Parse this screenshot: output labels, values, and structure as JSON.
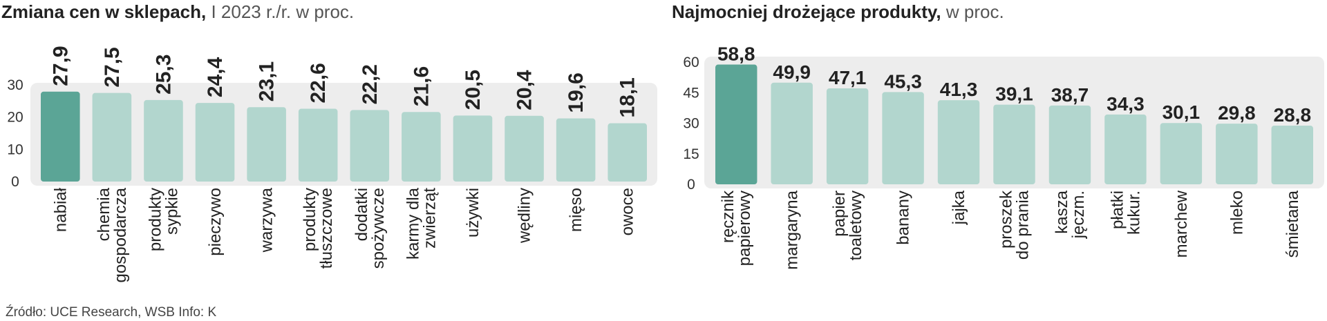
{
  "chart_data": [
    {
      "type": "bar",
      "title": "Zmiana cen w sklepach,",
      "subtitle": "I 2023 r./r. w proc.",
      "categories": [
        [
          "nabiał"
        ],
        [
          "chemia",
          "gospodarcza"
        ],
        [
          "produkty",
          "sypkie"
        ],
        [
          "pieczywo"
        ],
        [
          "warzywa"
        ],
        [
          "produkty",
          "tłuszczowe"
        ],
        [
          "dodatki",
          "spożywcze"
        ],
        [
          "karmy dla",
          "zwierząt"
        ],
        [
          "używki"
        ],
        [
          "wędliny"
        ],
        [
          "mięso"
        ],
        [
          "owoce"
        ]
      ],
      "values": [
        27.9,
        27.5,
        25.3,
        24.4,
        23.1,
        22.6,
        22.2,
        21.6,
        20.5,
        20.4,
        19.6,
        18.1
      ],
      "value_labels": [
        "27,9",
        "27,5",
        "25,3",
        "24,4",
        "23,1",
        "22,6",
        "22,2",
        "21,6",
        "20,5",
        "20,4",
        "19,6",
        "18,1"
      ],
      "yticks": [
        0,
        10,
        20,
        30
      ],
      "ylim": [
        0,
        30
      ],
      "highlight_index": 0,
      "colors": {
        "highlight": "#5ba596",
        "bar": "#b2d6ce",
        "band": "#ededed"
      }
    },
    {
      "type": "bar",
      "title": "Najmocniej drożejące produkty,",
      "subtitle": "w proc.",
      "categories": [
        [
          "ręcznik",
          "papierowy"
        ],
        [
          "margaryna"
        ],
        [
          "papier",
          "toaletowy"
        ],
        [
          "banany"
        ],
        [
          "jajka"
        ],
        [
          "proszek",
          "do prania"
        ],
        [
          "kasza",
          "jęczm."
        ],
        [
          "płatki",
          "kukur."
        ],
        [
          "marchew"
        ],
        [
          "mleko"
        ],
        [
          "śmietana"
        ]
      ],
      "values": [
        58.8,
        49.9,
        47.1,
        45.3,
        41.3,
        39.1,
        38.7,
        34.3,
        30.1,
        29.8,
        28.8
      ],
      "value_labels": [
        "58,8",
        "49,9",
        "47,1",
        "45,3",
        "41,3",
        "39,1",
        "38,7",
        "34,3",
        "30,1",
        "29,8",
        "28,8"
      ],
      "yticks": [
        0,
        15,
        30,
        45,
        60
      ],
      "ylim": [
        0,
        60
      ],
      "highlight_index": 0,
      "colors": {
        "highlight": "#5ba596",
        "bar": "#b2d6ce",
        "band": "#ededed"
      }
    }
  ],
  "source": "Źródło: UCE Research, WSB  Info: K"
}
